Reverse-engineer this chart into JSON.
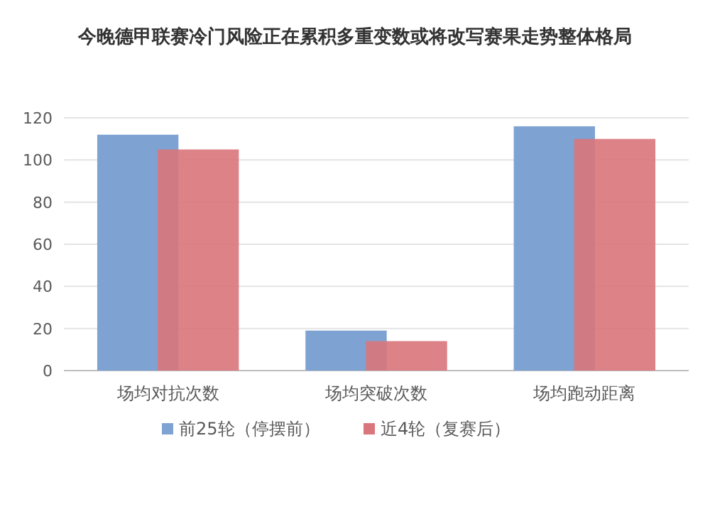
{
  "chart_data": {
    "type": "bar",
    "title": "今晚德甲联赛冷门风险正在累积多重变数或将改写赛果走势整体格局",
    "categories": [
      "场均对抗次数",
      "场均突破次数",
      "场均跑动距离"
    ],
    "series": [
      {
        "name": "前25轮（停摆前）",
        "color": "#7ea3d3",
        "values": [
          112,
          19,
          116
        ]
      },
      {
        "name": "近4轮（复赛后）",
        "color": "#d9767b",
        "values": [
          105,
          14,
          110
        ]
      }
    ],
    "ylim": [
      0,
      120
    ],
    "yticks": [
      0,
      20,
      40,
      60,
      80,
      100,
      120
    ],
    "grid": "y",
    "legend": "bottom"
  }
}
